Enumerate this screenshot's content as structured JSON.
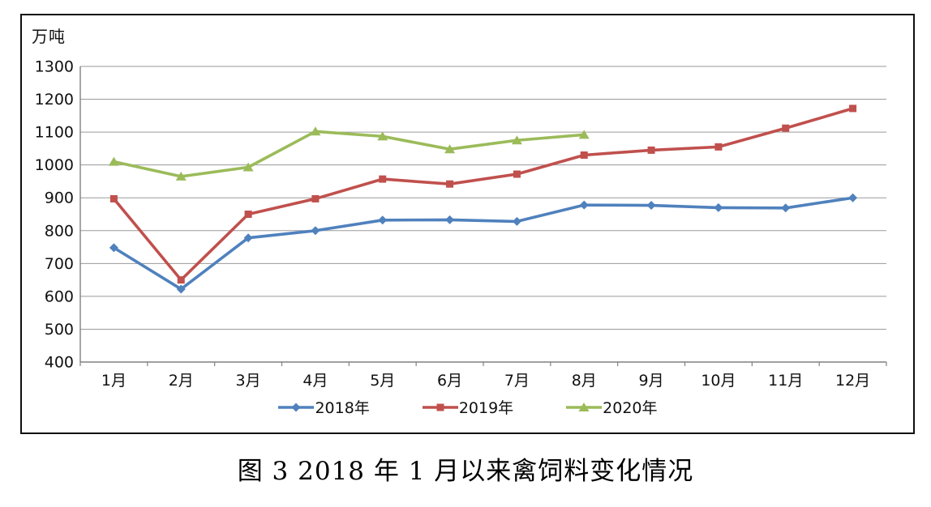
{
  "caption": "图 3  2018 年 1 月以来禽饲料变化情况",
  "colors": {
    "series_2018": "#4F81BD",
    "series_2019": "#C0504D",
    "series_2020": "#9BBB59",
    "gridline": "#9a9a9a",
    "axis": "#808080",
    "tick_text": "#111111",
    "frame_border": "#0f0f0f",
    "background": "#ffffff"
  },
  "chart_data": {
    "type": "line",
    "title": "图 3  2018 年 1 月以来禽饲料变化情况",
    "ylabel": "万吨",
    "xlabel": "",
    "categories": [
      "1月",
      "2月",
      "3月",
      "4月",
      "5月",
      "6月",
      "7月",
      "8月",
      "9月",
      "10月",
      "11月",
      "12月"
    ],
    "ylim": [
      400,
      1300
    ],
    "ytick_step": 100,
    "yticks": [
      400,
      500,
      600,
      700,
      800,
      900,
      1000,
      1100,
      1200,
      1300
    ],
    "grid": true,
    "legend_position": "bottom",
    "series": [
      {
        "name": "2018年",
        "marker": "diamond",
        "color": "#4F81BD",
        "values": [
          748,
          622,
          778,
          800,
          832,
          833,
          828,
          878,
          877,
          870,
          869,
          900
        ]
      },
      {
        "name": "2019年",
        "marker": "square",
        "color": "#C0504D",
        "values": [
          897,
          650,
          850,
          897,
          957,
          942,
          972,
          1030,
          1045,
          1055,
          1112,
          1172
        ]
      },
      {
        "name": "2020年",
        "marker": "triangle",
        "color": "#9BBB59",
        "values": [
          1010,
          965,
          993,
          1102,
          1087,
          1048,
          1075,
          1092
        ]
      }
    ]
  }
}
